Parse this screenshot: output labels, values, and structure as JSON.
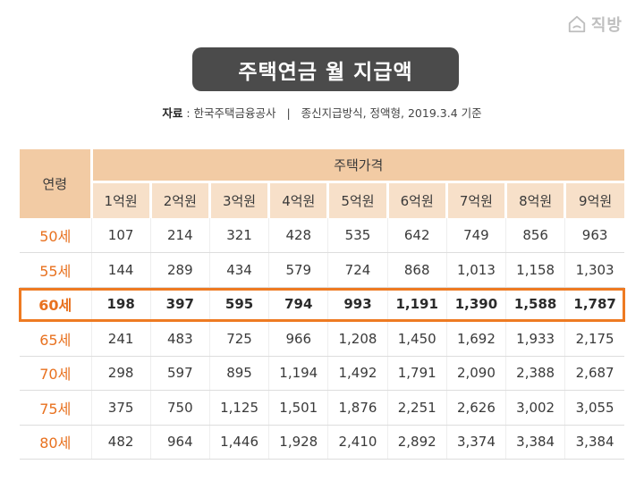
{
  "logo": {
    "text": "직방",
    "icon": "house-logo-icon"
  },
  "title": "주택연금 월 지급액",
  "source": {
    "label": "자료",
    "text": " : 한국주택금융공사   |   종신지급방식, 정액형, 2019.3.4 기준"
  },
  "table": {
    "age_header": "연령",
    "group_header": "주택가격",
    "price_headers": [
      "1억원",
      "2억원",
      "3억원",
      "4억원",
      "5억원",
      "6억원",
      "7억원",
      "8억원",
      "9억원"
    ],
    "rows": [
      {
        "age": "50세",
        "values": [
          "107",
          "214",
          "321",
          "428",
          "535",
          "642",
          "749",
          "856",
          "963"
        ]
      },
      {
        "age": "55세",
        "values": [
          "144",
          "289",
          "434",
          "579",
          "724",
          "868",
          "1,013",
          "1,158",
          "1,303"
        ]
      },
      {
        "age": "60세",
        "values": [
          "198",
          "397",
          "595",
          "794",
          "993",
          "1,191",
          "1,390",
          "1,588",
          "1,787"
        ]
      },
      {
        "age": "65세",
        "values": [
          "241",
          "483",
          "725",
          "966",
          "1,208",
          "1,450",
          "1,692",
          "1,933",
          "2,175"
        ]
      },
      {
        "age": "70세",
        "values": [
          "298",
          "597",
          "895",
          "1,194",
          "1,492",
          "1,791",
          "2,090",
          "2,388",
          "2,687"
        ]
      },
      {
        "age": "75세",
        "values": [
          "375",
          "750",
          "1,125",
          "1,501",
          "1,876",
          "2,251",
          "2,626",
          "3,002",
          "3,055"
        ]
      },
      {
        "age": "80세",
        "values": [
          "482",
          "964",
          "1,446",
          "1,928",
          "2,410",
          "2,892",
          "3,374",
          "3,384",
          "3,384"
        ]
      }
    ],
    "highlighted_row": "60세"
  },
  "colors": {
    "accent": "#ee7a22",
    "header_dark": "#f2cba4",
    "header_light": "#f7e0c9",
    "title_bg": "#4b4b4b"
  }
}
